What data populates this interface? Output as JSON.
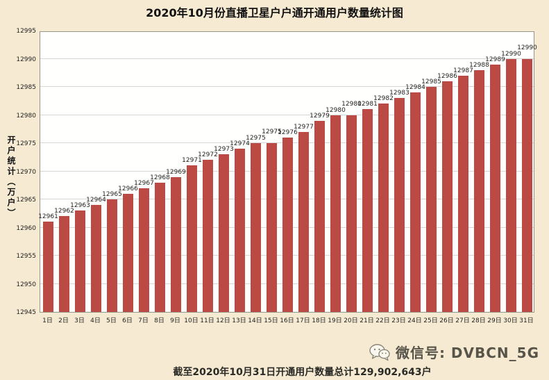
{
  "chart_data": {
    "type": "bar",
    "title": "2020年10月份直播卫星户户通开通用户数量统计图",
    "ylabel": "开户统计（万户）",
    "xlabel": "",
    "categories": [
      "1日",
      "2日",
      "3日",
      "4日",
      "5日",
      "6日",
      "7日",
      "8日",
      "9日",
      "10日",
      "11日",
      "12日",
      "13日",
      "14日",
      "15日",
      "16日",
      "17日",
      "18日",
      "19日",
      "20日",
      "21日",
      "22日",
      "23日",
      "24日",
      "25日",
      "26日",
      "27日",
      "28日",
      "29日",
      "30日",
      "31日"
    ],
    "values": [
      12961,
      12962,
      12963,
      12964,
      12965,
      12966,
      12967,
      12968,
      12969,
      12971,
      12972,
      12973,
      12974,
      12975,
      12975,
      12976,
      12977,
      12979,
      12980,
      12980,
      12981,
      12982,
      12983,
      12984,
      12985,
      12986,
      12987,
      12988,
      12989,
      12990,
      12990
    ],
    "ylim": [
      12945,
      12995
    ],
    "ytick_step": 5,
    "grid": true,
    "legend": "none",
    "bar_color": "#bb4a45",
    "plot_background": "#fffffe",
    "page_background": "#f6ebd2"
  },
  "footer": {
    "summary": "截至2020年10月31日开通用户数量总计129,902,643户",
    "wechat_label": "微信号: DVBCN_5G",
    "wechat_icon": "wechat-icon"
  }
}
